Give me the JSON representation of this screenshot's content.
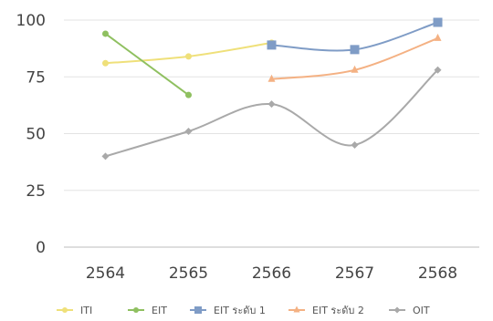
{
  "chart_data": {
    "type": "line",
    "categories": [
      "2564",
      "2565",
      "2566",
      "2567",
      "2568"
    ],
    "ylim": [
      0,
      100
    ],
    "yticks": [
      0,
      25,
      50,
      75,
      100
    ],
    "grid": true,
    "legend_position": "bottom",
    "series": [
      {
        "name": "ITI",
        "color": "#efe07a",
        "marker": "circle",
        "smooth": true,
        "values": [
          81,
          84,
          90,
          null,
          null
        ]
      },
      {
        "name": "EIT",
        "color": "#8fc060",
        "marker": "circle",
        "smooth": false,
        "values": [
          94,
          67,
          null,
          null,
          null
        ]
      },
      {
        "name": "EIT ระดับ 1",
        "color": "#7f9cc6",
        "marker": "square",
        "smooth": true,
        "values": [
          null,
          null,
          89,
          87,
          99
        ]
      },
      {
        "name": "EIT ระดับ 2",
        "color": "#f4b183",
        "marker": "triangle",
        "smooth": true,
        "values": [
          null,
          null,
          74,
          78,
          92
        ]
      },
      {
        "name": "OIT",
        "color": "#a9a9a9",
        "marker": "diamond",
        "smooth": true,
        "values": [
          40,
          51,
          63,
          45,
          78
        ]
      }
    ]
  }
}
